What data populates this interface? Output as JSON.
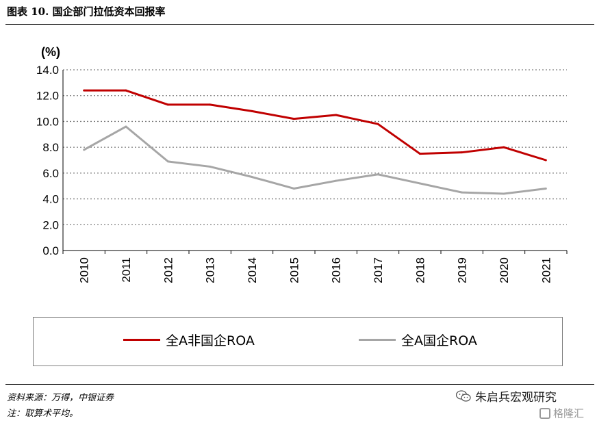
{
  "title": "图表 10. 国企部门拉低资本回报率",
  "source": "资料来源：万得，中银证券",
  "note": "注：取算术平均。",
  "wechat_account": "朱启兵宏观研究",
  "watermark": "格隆汇",
  "chart_data": {
    "type": "line",
    "ylabel": "(%)",
    "x": [
      "2010",
      "2011",
      "2012",
      "2013",
      "2014",
      "2015",
      "2016",
      "2017",
      "2018",
      "2019",
      "2020",
      "2021"
    ],
    "ylim": [
      0,
      14
    ],
    "yticks": [
      "0.0",
      "2.0",
      "4.0",
      "6.0",
      "8.0",
      "10.0",
      "12.0",
      "14.0"
    ],
    "grid": true,
    "legend_position": "bottom",
    "series": [
      {
        "name": "全A非国企ROA",
        "color": "#c00000",
        "values": [
          12.4,
          12.4,
          11.3,
          11.3,
          10.8,
          10.2,
          10.5,
          9.8,
          7.5,
          7.6,
          8.0,
          7.0
        ]
      },
      {
        "name": "全A国企ROA",
        "color": "#a6a6a6",
        "values": [
          7.8,
          9.6,
          6.9,
          6.5,
          5.7,
          4.8,
          5.4,
          5.9,
          5.2,
          4.5,
          4.4,
          4.8
        ]
      }
    ]
  }
}
